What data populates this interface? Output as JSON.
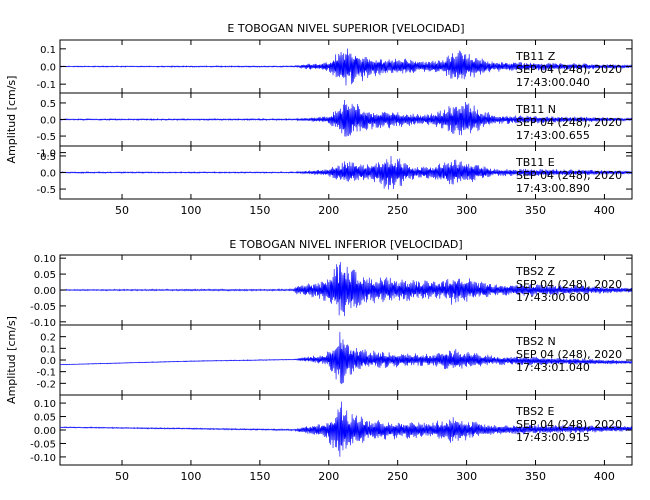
{
  "chart_data": [
    {
      "type": "line",
      "title": "E TOBOGAN NIVEL SUPERIOR [VELOCIDAD]",
      "ylabel": "Amplitud [cm/s]",
      "xlim": [
        5,
        420
      ],
      "x_ticks": [
        "50",
        "100",
        "150",
        "200",
        "250",
        "300",
        "350",
        "400"
      ],
      "series_color": "#0000ff",
      "panels": [
        {
          "ylim": [
            -0.15,
            0.15
          ],
          "y_ticks": [
            "0.1",
            "0.0",
            "-0.1"
          ],
          "label_line1": "TB11   Z",
          "label_line2": "SEP 04 (248), 2020",
          "label_line3": "17:43:00.040",
          "env": [
            {
              "x": 5,
              "a": 0.003
            },
            {
              "x": 175,
              "a": 0.004
            },
            {
              "x": 180,
              "a": 0.012
            },
            {
              "x": 200,
              "a": 0.03
            },
            {
              "x": 207,
              "a": 0.09
            },
            {
              "x": 212,
              "a": 0.13
            },
            {
              "x": 218,
              "a": 0.11
            },
            {
              "x": 230,
              "a": 0.06
            },
            {
              "x": 245,
              "a": 0.05
            },
            {
              "x": 260,
              "a": 0.045
            },
            {
              "x": 270,
              "a": 0.03
            },
            {
              "x": 283,
              "a": 0.05
            },
            {
              "x": 293,
              "a": 0.1
            },
            {
              "x": 300,
              "a": 0.08
            },
            {
              "x": 320,
              "a": 0.03
            },
            {
              "x": 350,
              "a": 0.025
            },
            {
              "x": 420,
              "a": 0.01
            }
          ]
        },
        {
          "ylim": [
            -0.8,
            0.8
          ],
          "y_ticks": [
            "0.5",
            "0.0",
            "-0.5",
            "-1.0"
          ],
          "label_line1": "TB11   N",
          "label_line2": "SEP 04 (248), 2020",
          "label_line3": "17:43:00.655",
          "env": [
            {
              "x": 5,
              "a": 0.02
            },
            {
              "x": 175,
              "a": 0.025
            },
            {
              "x": 182,
              "a": 0.05
            },
            {
              "x": 200,
              "a": 0.12
            },
            {
              "x": 207,
              "a": 0.4
            },
            {
              "x": 212,
              "a": 0.7
            },
            {
              "x": 218,
              "a": 0.55
            },
            {
              "x": 232,
              "a": 0.3
            },
            {
              "x": 250,
              "a": 0.25
            },
            {
              "x": 268,
              "a": 0.15
            },
            {
              "x": 285,
              "a": 0.35
            },
            {
              "x": 293,
              "a": 0.6
            },
            {
              "x": 303,
              "a": 0.5
            },
            {
              "x": 320,
              "a": 0.15
            },
            {
              "x": 350,
              "a": 0.12
            },
            {
              "x": 420,
              "a": 0.05
            }
          ]
        },
        {
          "ylim": [
            -0.8,
            0.8
          ],
          "y_ticks": [
            "0.5",
            "0.0",
            "-0.5"
          ],
          "label_line1": "TB11   E",
          "label_line2": "SEP 04 (248), 2020",
          "label_line3": "17:43:00.890",
          "env": [
            {
              "x": 5,
              "a": 0.02
            },
            {
              "x": 175,
              "a": 0.02
            },
            {
              "x": 185,
              "a": 0.06
            },
            {
              "x": 200,
              "a": 0.12
            },
            {
              "x": 208,
              "a": 0.3
            },
            {
              "x": 213,
              "a": 0.45
            },
            {
              "x": 222,
              "a": 0.25
            },
            {
              "x": 235,
              "a": 0.35
            },
            {
              "x": 242,
              "a": 0.6
            },
            {
              "x": 250,
              "a": 0.5
            },
            {
              "x": 262,
              "a": 0.2
            },
            {
              "x": 275,
              "a": 0.2
            },
            {
              "x": 292,
              "a": 0.45
            },
            {
              "x": 300,
              "a": 0.35
            },
            {
              "x": 320,
              "a": 0.12
            },
            {
              "x": 350,
              "a": 0.12
            },
            {
              "x": 420,
              "a": 0.05
            }
          ]
        }
      ]
    },
    {
      "type": "line",
      "title": "E TOBOGAN NIVEL INFERIOR [VELOCIDAD]",
      "ylabel": "Amplitud [cm/s]",
      "xlim": [
        5,
        420
      ],
      "x_ticks": [
        "50",
        "100",
        "150",
        "200",
        "250",
        "300",
        "350",
        "400"
      ],
      "series_color": "#0000ff",
      "panels": [
        {
          "ylim": [
            -0.11,
            0.11
          ],
          "y_ticks": [
            "0.10",
            "0.05",
            "0.00",
            "-0.05",
            "-0.10"
          ],
          "label_line1": "TBS2   Z",
          "label_line2": "SEP 04 (248), 2020",
          "label_line3": "17:43:00.600",
          "env": [
            {
              "x": 5,
              "a": 0.002
            },
            {
              "x": 174,
              "a": 0.003
            },
            {
              "x": 177,
              "a": 0.015
            },
            {
              "x": 195,
              "a": 0.03
            },
            {
              "x": 203,
              "a": 0.07
            },
            {
              "x": 208,
              "a": 0.1
            },
            {
              "x": 214,
              "a": 0.08
            },
            {
              "x": 225,
              "a": 0.05
            },
            {
              "x": 245,
              "a": 0.04
            },
            {
              "x": 260,
              "a": 0.035
            },
            {
              "x": 280,
              "a": 0.03
            },
            {
              "x": 291,
              "a": 0.05
            },
            {
              "x": 300,
              "a": 0.04
            },
            {
              "x": 320,
              "a": 0.02
            },
            {
              "x": 350,
              "a": 0.02
            },
            {
              "x": 420,
              "a": 0.008
            }
          ]
        },
        {
          "ylim": [
            -0.3,
            0.3
          ],
          "y_ticks": [
            "0.2",
            "0.1",
            "0.0",
            "-0.1",
            "-0.2"
          ],
          "label_line1": "TBS2   N",
          "label_line2": "SEP 04 (248), 2020",
          "label_line3": "17:43:01.040",
          "drift": [
            {
              "x": 5,
              "y": -0.04
            },
            {
              "x": 100,
              "y": -0.01
            },
            {
              "x": 180,
              "y": 0.005
            },
            {
              "x": 300,
              "y": 0.0
            },
            {
              "x": 420,
              "y": -0.02
            }
          ],
          "env": [
            {
              "x": 5,
              "a": 0.003
            },
            {
              "x": 175,
              "a": 0.004
            },
            {
              "x": 182,
              "a": 0.02
            },
            {
              "x": 198,
              "a": 0.05
            },
            {
              "x": 204,
              "a": 0.15
            },
            {
              "x": 208,
              "a": 0.27
            },
            {
              "x": 214,
              "a": 0.15
            },
            {
              "x": 228,
              "a": 0.08
            },
            {
              "x": 250,
              "a": 0.07
            },
            {
              "x": 275,
              "a": 0.05
            },
            {
              "x": 290,
              "a": 0.1
            },
            {
              "x": 300,
              "a": 0.08
            },
            {
              "x": 320,
              "a": 0.04
            },
            {
              "x": 350,
              "a": 0.04
            },
            {
              "x": 420,
              "a": 0.015
            }
          ]
        },
        {
          "ylim": [
            -0.13,
            0.13
          ],
          "y_ticks": [
            "0.10",
            "0.05",
            "0.00",
            "-0.05",
            "-0.10"
          ],
          "label_line1": "TBS2   E",
          "label_line2": "SEP 04 (248), 2020",
          "label_line3": "17:43:00.915",
          "drift": [
            {
              "x": 5,
              "y": 0.01
            },
            {
              "x": 100,
              "y": 0.005
            },
            {
              "x": 180,
              "y": 0.0
            },
            {
              "x": 300,
              "y": 0.0
            },
            {
              "x": 420,
              "y": 0.005
            }
          ],
          "env": [
            {
              "x": 5,
              "a": 0.002
            },
            {
              "x": 175,
              "a": 0.003
            },
            {
              "x": 180,
              "a": 0.012
            },
            {
              "x": 198,
              "a": 0.03
            },
            {
              "x": 204,
              "a": 0.08
            },
            {
              "x": 208,
              "a": 0.12
            },
            {
              "x": 214,
              "a": 0.08
            },
            {
              "x": 228,
              "a": 0.04
            },
            {
              "x": 250,
              "a": 0.035
            },
            {
              "x": 275,
              "a": 0.03
            },
            {
              "x": 290,
              "a": 0.055
            },
            {
              "x": 300,
              "a": 0.04
            },
            {
              "x": 320,
              "a": 0.02
            },
            {
              "x": 350,
              "a": 0.02
            },
            {
              "x": 420,
              "a": 0.01
            }
          ]
        }
      ]
    }
  ]
}
